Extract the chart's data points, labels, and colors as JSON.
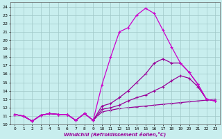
{
  "xlabel": "Windchill (Refroidissement éolien,°C)",
  "ylabel": "",
  "xlim": [
    -0.5,
    23.5
  ],
  "ylim": [
    10,
    24.5
  ],
  "yticks": [
    10,
    11,
    12,
    13,
    14,
    15,
    16,
    17,
    18,
    19,
    20,
    21,
    22,
    23,
    24
  ],
  "xticks": [
    0,
    1,
    2,
    3,
    4,
    5,
    6,
    7,
    8,
    9,
    10,
    11,
    12,
    13,
    14,
    15,
    16,
    17,
    18,
    19,
    20,
    21,
    22,
    23
  ],
  "background_color": "#c8eeee",
  "grid_color": "#a0c8c8",
  "line_color1": "#cc00cc",
  "line_color2": "#990099",
  "line1_x": [
    0,
    1,
    2,
    3,
    4,
    5,
    6,
    7,
    8,
    9,
    10,
    11,
    12,
    13,
    14,
    15,
    16,
    17,
    18,
    19,
    20,
    21,
    22,
    23
  ],
  "line1_y": [
    11.2,
    11.0,
    10.4,
    11.1,
    11.3,
    11.2,
    11.2,
    10.5,
    11.3,
    10.5,
    14.7,
    18.0,
    21.0,
    21.5,
    23.0,
    23.8,
    23.2,
    21.2,
    19.2,
    17.3,
    16.2,
    14.8,
    13.0,
    12.8
  ],
  "line2_x": [
    0,
    1,
    2,
    3,
    4,
    5,
    6,
    7,
    8,
    9,
    10,
    11,
    12,
    13,
    14,
    15,
    16,
    17,
    18,
    19,
    20,
    21,
    22,
    23
  ],
  "line2_y": [
    11.2,
    11.0,
    10.4,
    11.1,
    11.3,
    11.2,
    11.2,
    10.5,
    11.3,
    10.5,
    12.2,
    12.5,
    13.2,
    14.0,
    15.0,
    16.0,
    17.3,
    17.8,
    17.3,
    17.3,
    16.2,
    14.8,
    13.0,
    12.8
  ],
  "line3_x": [
    0,
    1,
    2,
    3,
    4,
    5,
    6,
    7,
    8,
    9,
    10,
    11,
    12,
    13,
    14,
    15,
    16,
    17,
    18,
    19,
    20,
    21,
    22,
    23
  ],
  "line3_y": [
    11.2,
    11.0,
    10.4,
    11.1,
    11.3,
    11.2,
    11.2,
    10.5,
    11.3,
    10.5,
    11.8,
    12.0,
    12.3,
    12.8,
    13.2,
    13.5,
    14.0,
    14.5,
    15.2,
    15.8,
    15.5,
    14.5,
    13.0,
    12.8
  ],
  "line4_x": [
    0,
    1,
    2,
    3,
    4,
    5,
    6,
    7,
    8,
    9,
    10,
    11,
    12,
    13,
    14,
    15,
    16,
    17,
    18,
    19,
    20,
    21,
    22,
    23
  ],
  "line4_y": [
    11.2,
    11.0,
    10.4,
    11.1,
    11.3,
    11.2,
    11.2,
    10.5,
    11.3,
    10.5,
    11.5,
    11.7,
    11.9,
    12.0,
    12.1,
    12.2,
    12.3,
    12.4,
    12.5,
    12.6,
    12.7,
    12.8,
    12.9,
    13.0
  ]
}
